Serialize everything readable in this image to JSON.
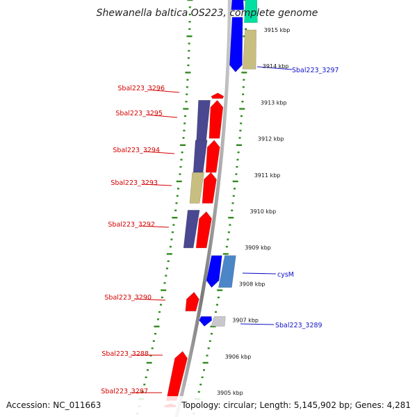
{
  "title": "Shewanella baltica OS223, complete genome",
  "footer": {
    "accession": "Accession: NC_011663",
    "topology": "Topology: circular; Length: 5,145,902 bp; Genes: 4,281"
  },
  "colors": {
    "background": "#ffffff",
    "backbone": "#8a8a8a",
    "tick_green": "#2e8b1e",
    "forward_gene": "#ff0000",
    "left_label": "#d40000",
    "right_label": "#1010c8",
    "navy": "#4a4890",
    "khaki": "#c8be80",
    "blue": "#0000ff",
    "steel": "#4a86c8",
    "teal": "#00e0a0",
    "gray": "#c8c8cc"
  },
  "kbp_ticks": [
    {
      "kbp": 3915,
      "label": "3915 kbp"
    },
    {
      "kbp": 3914,
      "label": "3914 kbp"
    },
    {
      "kbp": 3913,
      "label": "3913 kbp"
    },
    {
      "kbp": 3912,
      "label": "3912 kbp"
    },
    {
      "kbp": 3911,
      "label": "3911 kbp"
    },
    {
      "kbp": 3910,
      "label": "3910 kbp"
    },
    {
      "kbp": 3909,
      "label": "3909 kbp"
    },
    {
      "kbp": 3908,
      "label": "3908 kbp"
    },
    {
      "kbp": 3907,
      "label": "3907 kbp"
    },
    {
      "kbp": 3906,
      "label": "3906 kbp"
    },
    {
      "kbp": 3905,
      "label": "3905 kbp"
    }
  ],
  "left_labels": [
    {
      "text": "Sbal223_3296"
    },
    {
      "text": "Sbal223_3295"
    },
    {
      "text": "Sbal223_3294"
    },
    {
      "text": "Sbal223_3293"
    },
    {
      "text": "Sbal223_3292"
    },
    {
      "text": "Sbal223_3290"
    },
    {
      "text": "Sbal223_3288"
    },
    {
      "text": "Sbal223_3287"
    }
  ],
  "right_labels": [
    {
      "text": "Sbal223_3297"
    },
    {
      "text": "cysM"
    },
    {
      "text": "Sbal223_3289"
    }
  ],
  "genes": [
    {
      "name": "Sbal223_3296",
      "strand": "+",
      "ring": "cds",
      "start_kbp": 3913.11,
      "end_kbp": 3913.26,
      "color": "forward_gene",
      "arrow": true
    },
    {
      "name": "Sbal223_3295",
      "strand": "+",
      "ring": "cds",
      "start_kbp": 3912.01,
      "end_kbp": 3913.06,
      "color": "forward_gene",
      "arrow": true
    },
    {
      "name": "Sbal223_3295-cog",
      "strand": "+",
      "ring": "cog",
      "start_kbp": 3911.96,
      "end_kbp": 3913.06,
      "color": "navy",
      "arrow": false
    },
    {
      "name": "Sbal223_3294",
      "strand": "+",
      "ring": "cds",
      "start_kbp": 3911.07,
      "end_kbp": 3911.96,
      "color": "forward_gene",
      "arrow": true
    },
    {
      "name": "Sbal223_3294-cog",
      "strand": "+",
      "ring": "cog",
      "start_kbp": 3911.07,
      "end_kbp": 3911.96,
      "color": "navy",
      "arrow": false
    },
    {
      "name": "Sbal223_3293",
      "strand": "+",
      "ring": "cds",
      "start_kbp": 3910.22,
      "end_kbp": 3911.07,
      "color": "forward_gene",
      "arrow": true
    },
    {
      "name": "Sbal223_3293-cog",
      "strand": "+",
      "ring": "cog",
      "start_kbp": 3910.22,
      "end_kbp": 3911.07,
      "color": "khaki",
      "arrow": false
    },
    {
      "name": "Sbal223_3292",
      "strand": "+",
      "ring": "cds",
      "start_kbp": 3908.99,
      "end_kbp": 3909.99,
      "color": "forward_gene",
      "arrow": true
    },
    {
      "name": "Sbal223_3292-cog",
      "strand": "+",
      "ring": "cog",
      "start_kbp": 3908.99,
      "end_kbp": 3910.03,
      "color": "navy",
      "arrow": false
    },
    {
      "name": "Sbal223_3290",
      "strand": "+",
      "ring": "cds",
      "start_kbp": 3907.25,
      "end_kbp": 3907.77,
      "color": "forward_gene",
      "arrow": true
    },
    {
      "name": "Sbal223_3288",
      "strand": "+",
      "ring": "cds",
      "start_kbp": 3904.78,
      "end_kbp": 3906.14,
      "color": "forward_gene",
      "arrow": true
    },
    {
      "name": "Sbal223_3287",
      "strand": "+",
      "ring": "cds",
      "start_kbp": 3904.6,
      "end_kbp": 3904.7,
      "color": "forward_gene",
      "arrow": true
    },
    {
      "name": "Sbal223_3297",
      "strand": "-",
      "ring": "cds",
      "start_kbp": 3913.84,
      "end_kbp": 3915.35,
      "color": "blue",
      "arrow": true
    },
    {
      "name": "Sbal223_3297-cog",
      "strand": "-",
      "ring": "cog",
      "start_kbp": 3913.92,
      "end_kbp": 3915.0,
      "color": "khaki",
      "arrow": false
    },
    {
      "name": "top-blue",
      "strand": "-",
      "ring": "cds",
      "start_kbp": 3915.55,
      "end_kbp": 3916.0,
      "color": "blue",
      "arrow": false
    },
    {
      "name": "top-teal",
      "strand": "-",
      "ring": "cog",
      "start_kbp": 3915.2,
      "end_kbp": 3916.0,
      "color": "teal",
      "arrow": false
    },
    {
      "name": "cysM",
      "strand": "-",
      "ring": "cds",
      "start_kbp": 3907.9,
      "end_kbp": 3908.78,
      "color": "blue",
      "arrow": true
    },
    {
      "name": "cysM-cog",
      "strand": "-",
      "ring": "cog",
      "start_kbp": 3907.9,
      "end_kbp": 3908.78,
      "color": "steel",
      "arrow": false
    },
    {
      "name": "Sbal223_3289",
      "strand": "-",
      "ring": "cds",
      "start_kbp": 3906.83,
      "end_kbp": 3907.1,
      "color": "blue",
      "arrow": true
    },
    {
      "name": "Sbal223_3289-cog",
      "strand": "-",
      "ring": "cog",
      "start_kbp": 3906.83,
      "end_kbp": 3907.1,
      "color": "gray",
      "arrow": false
    }
  ]
}
